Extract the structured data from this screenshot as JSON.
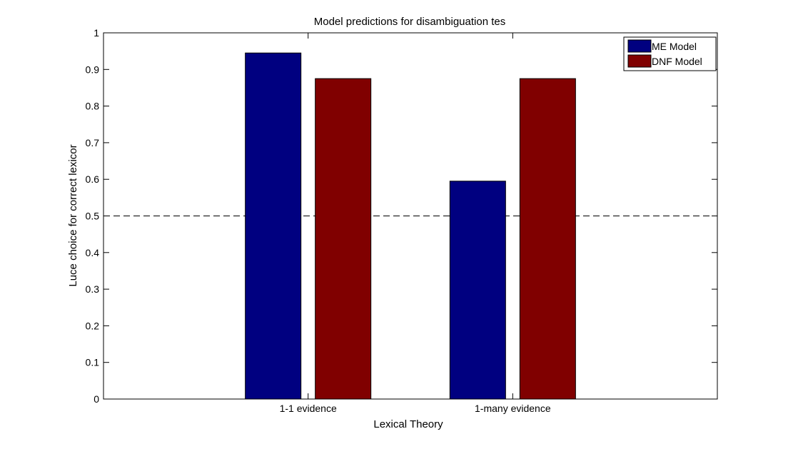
{
  "chart_data": {
    "type": "bar",
    "title": "Model predictions for disambiguation tes",
    "xlabel": "Lexical Theory",
    "ylabel": "Luce choice for correct lexicor",
    "categories": [
      "1-1 evidence",
      "1-many evidence"
    ],
    "series": [
      {
        "name": "ME Model",
        "color": "#000080",
        "values": [
          0.945,
          0.595
        ]
      },
      {
        "name": "DNF Model",
        "color": "#800000",
        "values": [
          0.875,
          0.875
        ]
      }
    ],
    "ylim": [
      0,
      1
    ],
    "yticks": [
      "0",
      "0.1",
      "0.2",
      "0.3",
      "0.4",
      "0.5",
      "0.6",
      "0.7",
      "0.8",
      "0.9",
      "1"
    ],
    "reference_line": {
      "y": 0.5,
      "style": "dashed"
    },
    "legend_position": "top-right",
    "grid": false
  }
}
